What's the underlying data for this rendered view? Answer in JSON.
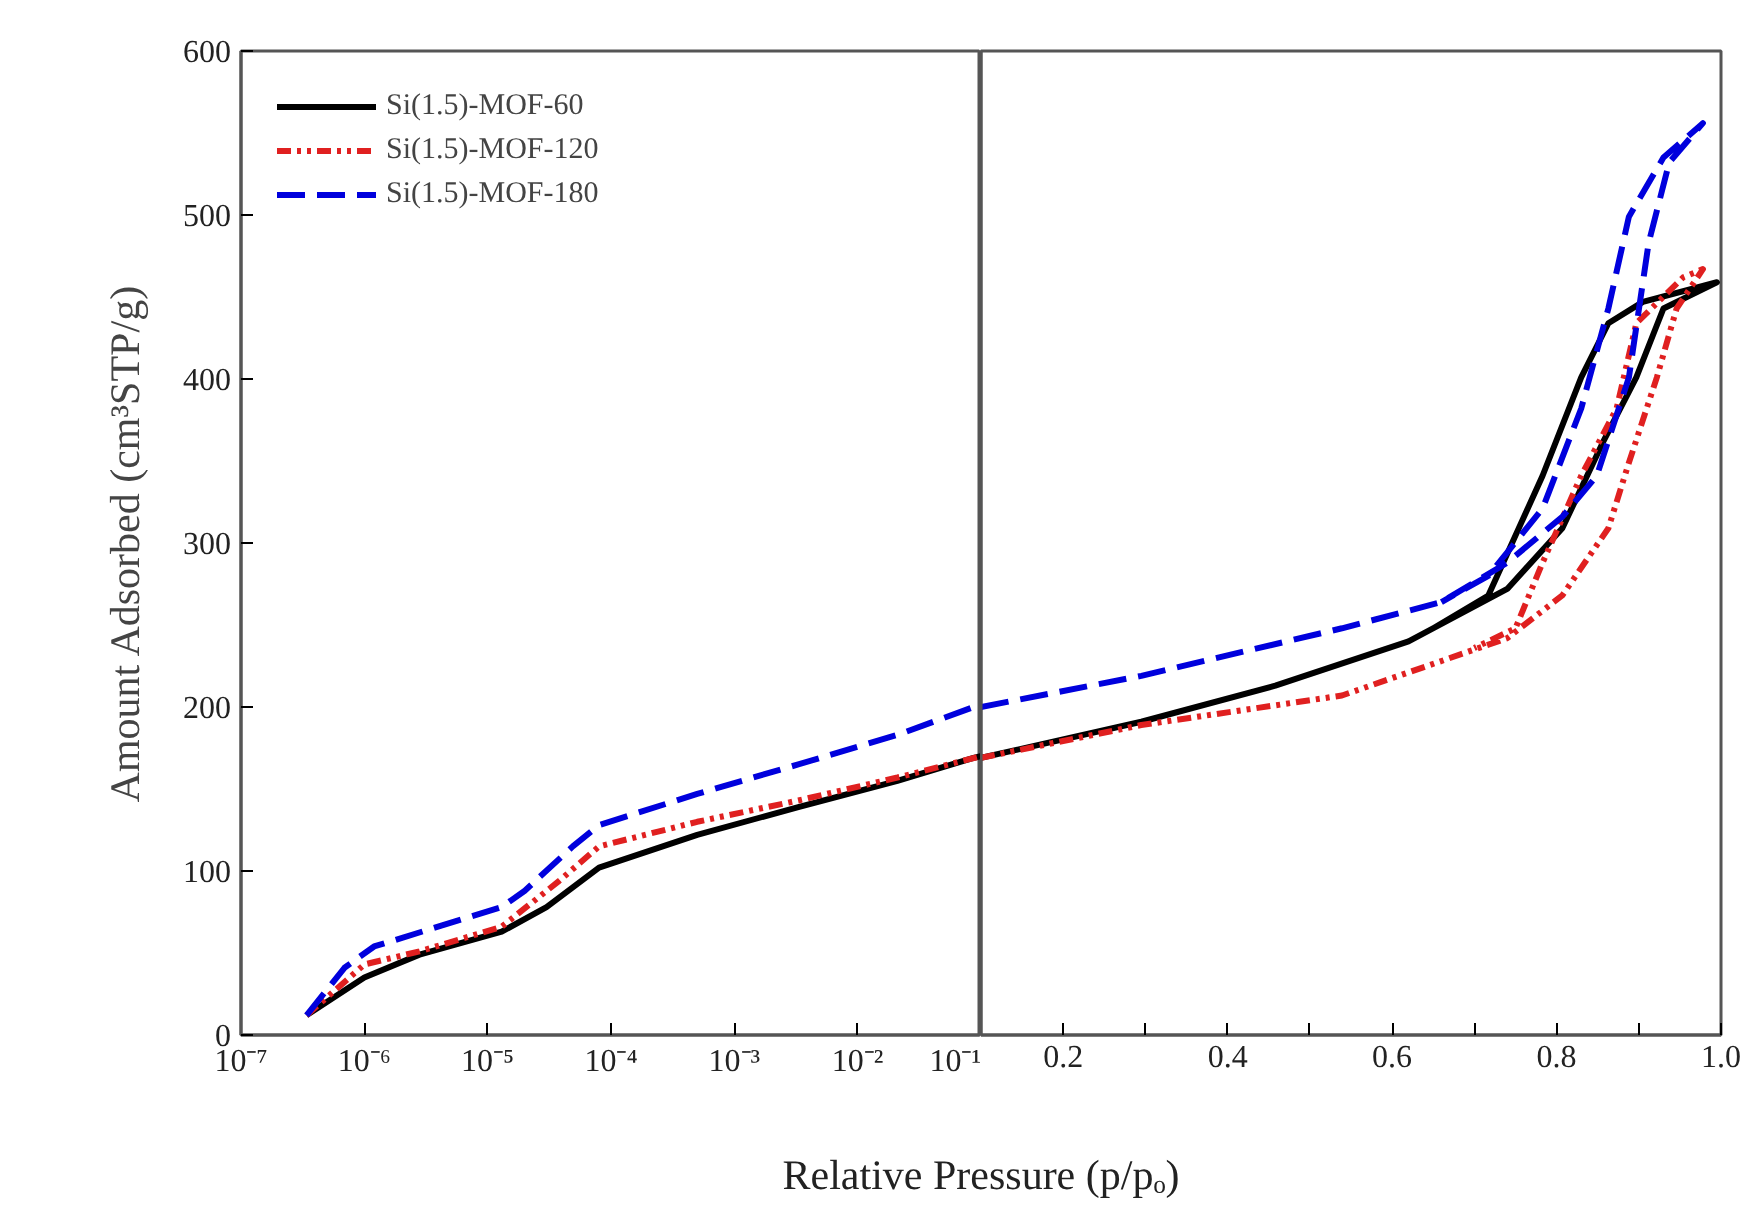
{
  "chart_data": [
    {
      "type": "line",
      "ylabel": "Amount Adsorbed (cm³STP/g)",
      "xlabel": "Relative Pressure (p/pₒ)",
      "log": "x",
      "xlim": [
        1e-07,
        0.1
      ],
      "ylim": [
        0,
        600
      ],
      "xticks": [
        {
          "value": 1e-07,
          "label": "10⁻⁷"
        },
        {
          "value": 1e-06,
          "label": "10⁻⁶"
        },
        {
          "value": 1e-05,
          "label": "10⁻⁵"
        },
        {
          "value": 0.0001,
          "label": "10⁻⁴"
        },
        {
          "value": 0.001,
          "label": "10⁻³"
        },
        {
          "value": 0.01,
          "label": "10⁻²"
        },
        {
          "value": 0.1,
          "label": "10⁻¹"
        }
      ],
      "yticks": [
        0,
        100,
        200,
        300,
        400,
        500,
        600
      ],
      "grid": false,
      "legend": "top left",
      "marker": "none",
      "series": [
        {
          "name": "Si(1.5)-MOF-60",
          "color": "#000000",
          "line_style": "solid",
          "x": [
            3.4e-07,
            1e-06,
            2.8e-06,
            1.3e-05,
            3e-05,
            8e-05,
            0.0005,
            0.0033,
            0.021,
            0.087,
            0.1
          ],
          "values": [
            12,
            35,
            49,
            63,
            78,
            102,
            122,
            139,
            155,
            169,
            170
          ]
        },
        {
          "name": "Si(1.5)-MOF-120",
          "color": "#e02020",
          "line_style": "dotted",
          "x": [
            3.4e-07,
            1e-06,
            2.8e-06,
            1.3e-05,
            3.8e-05,
            8e-05,
            0.0005,
            0.0033,
            0.021,
            0.1
          ],
          "values": [
            12,
            43,
            51,
            66,
            94,
            115,
            130,
            143,
            157,
            170
          ]
        },
        {
          "name": "Si(1.5)-MOF-180",
          "color": "#0000dd",
          "line_style": "dashed",
          "x": [
            3.4e-07,
            6.9e-07,
            1.2e-06,
            1.3e-05,
            2e-05,
            4.9e-05,
            8e-05,
            0.0005,
            0.0033,
            0.021,
            0.087,
            0.1
          ],
          "values": [
            12,
            41,
            54,
            78,
            88,
            115,
            128,
            147,
            165,
            183,
            200,
            201
          ]
        }
      ]
    },
    {
      "type": "line",
      "xlim": [
        0.1,
        1.0
      ],
      "ylim": [
        0,
        600
      ],
      "tick_labels": "x",
      "xticks": [
        0.2,
        {
          "value": 0.3,
          "label": null
        },
        0.4,
        {
          "value": 0.5,
          "label": null
        },
        0.6,
        {
          "value": 0.7,
          "label": null
        },
        0.8,
        {
          "value": 0.9,
          "label": null
        },
        {
          "value": 1.0,
          "label": "1.0"
        }
      ],
      "yticks": [
        0,
        100,
        200,
        300,
        400,
        500,
        600
      ],
      "grid": false,
      "marker": "none",
      "series": [
        {
          "color": "#000000",
          "line_style": "solid",
          "x": [
            0.1,
            0.295,
            0.458,
            0.62,
            0.74,
            0.807,
            0.856,
            0.897,
            0.93,
            0.995,
            0.905,
            0.863,
            0.83,
            0.783,
            0.717,
            0.65
          ],
          "values": [
            169,
            191,
            213,
            240,
            272,
            309,
            361,
            401,
            443,
            459,
            447,
            434,
            401,
            341,
            268,
            248
          ]
        },
        {
          "color": "#e02020",
          "line_style": "dotted",
          "x": [
            0.1,
            0.295,
            0.539,
            0.74,
            0.807,
            0.863,
            0.888,
            0.922,
            0.946,
            0.978,
            0.954,
            0.897,
            0.873,
            0.83,
            0.783,
            0.75,
            0.7
          ],
          "values": [
            169,
            189,
            207,
            242,
            268,
            309,
            349,
            401,
            443,
            467,
            462,
            434,
            382,
            341,
            288,
            248,
            236
          ]
        },
        {
          "color": "#0000dd",
          "line_style": "dashed",
          "x": [
            0.1,
            0.295,
            0.539,
            0.66,
            0.74,
            0.807,
            0.849,
            0.888,
            0.912,
            0.937,
            0.978,
            0.93,
            0.888,
            0.863,
            0.83,
            0.783,
            0.717,
            0.66
          ],
          "values": [
            200,
            219,
            248,
            264,
            288,
            316,
            341,
            401,
            483,
            532,
            556,
            535,
            499,
            443,
            382,
            321,
            280,
            264
          ]
        }
      ]
    }
  ]
}
